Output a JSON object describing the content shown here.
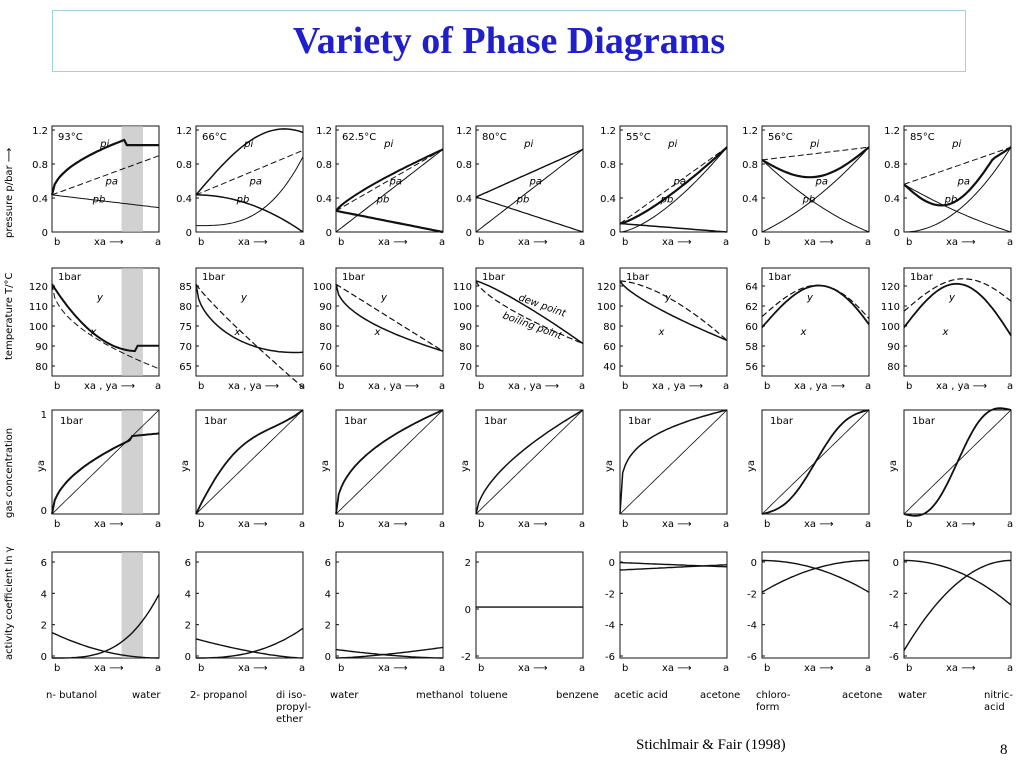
{
  "slide": {
    "title": "Variety of Phase Diagrams",
    "credit": "Stichlmair & Fair (1998)",
    "page_number": "8"
  },
  "row_labels": {
    "pressure": "pressure p/bar ⟶",
    "temperature": "temperature T/°C",
    "gas": "gas concentration",
    "activity": "activity coefficient ln γ"
  },
  "columns": [
    {
      "temp": "93°C",
      "t_ticks": [
        "120",
        "110",
        "100",
        "90",
        "80"
      ],
      "y_ticks": [
        "1",
        "0"
      ],
      "a_ticks": [
        "6",
        "4",
        "2",
        "0"
      ],
      "shade": true
    },
    {
      "temp": "66°C",
      "t_ticks": [
        "85",
        "80",
        "75",
        "70",
        "65"
      ],
      "y_ticks": [],
      "a_ticks": [
        "6",
        "4",
        "2",
        "0"
      ],
      "shade": false
    },
    {
      "temp": "62.5°C",
      "t_ticks": [
        "100",
        "90",
        "80",
        "70",
        "60"
      ],
      "y_ticks": [],
      "a_ticks": [
        "6",
        "4",
        "2",
        "0"
      ],
      "shade": false
    },
    {
      "temp": "80°C",
      "t_ticks": [
        "110",
        "100",
        "90",
        "80",
        "70"
      ],
      "y_ticks": [],
      "a_ticks": [
        "2",
        "0",
        "-2"
      ],
      "shade": false
    },
    {
      "temp": "55°C",
      "t_ticks": [
        "120",
        "100",
        "80",
        "60",
        "40"
      ],
      "y_ticks": [],
      "a_ticks": [
        "0",
        "-2",
        "-4",
        "-6"
      ],
      "shade": false
    },
    {
      "temp": "56°C",
      "t_ticks": [
        "64",
        "62",
        "60",
        "58",
        "56"
      ],
      "y_ticks": [],
      "a_ticks": [
        "0",
        "-2",
        "-4",
        "-6"
      ],
      "shade": false
    },
    {
      "temp": "85°C",
      "t_ticks": [
        "120",
        "110",
        "100",
        "90",
        "80"
      ],
      "y_ticks": [],
      "a_ticks": [
        "0",
        "-2",
        "-4",
        "-6"
      ],
      "shade": false
    }
  ],
  "common": {
    "p_ticks": [
      "1.2",
      "0.8",
      "0.4",
      "0"
    ],
    "bar_label": "1bar",
    "b": "b",
    "a": "a",
    "xa_axis": "xa ⟶",
    "xy_axis": "xa , ya ⟶",
    "ya": "ya",
    "pi": "pi",
    "pa": "pa",
    "pb": "pb",
    "x": "x",
    "y": "y",
    "dew": "dew point",
    "boil": "boiling point"
  },
  "systems": [
    {
      "b": "n- butanol",
      "a": "water"
    },
    {
      "b": "2- propanol",
      "a": "di iso-\npropyl-\nether"
    },
    {
      "b": "water",
      "a": "methanol"
    },
    {
      "b": "toluene",
      "a": "benzene"
    },
    {
      "b": "acetic acid",
      "a": "acetone"
    },
    {
      "b": "chloro-\nform",
      "a": "acetone"
    },
    {
      "b": "water",
      "a": "nitric-\nacid"
    }
  ]
}
